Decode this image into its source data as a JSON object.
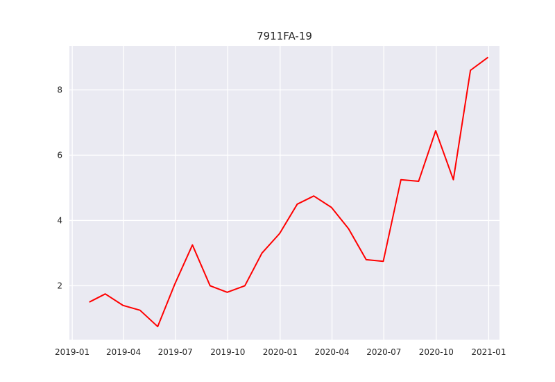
{
  "chart_data": {
    "type": "line",
    "title": "7911FA-19",
    "xlabel": "",
    "ylabel": "",
    "grid": true,
    "x_axis": {
      "type": "date",
      "range": [
        "2018-12-27",
        "2021-01-20"
      ],
      "ticks": [
        {
          "value": "2019-01-01",
          "label": "2019-01"
        },
        {
          "value": "2019-04-01",
          "label": "2019-04"
        },
        {
          "value": "2019-07-01",
          "label": "2019-07"
        },
        {
          "value": "2019-10-01",
          "label": "2019-10"
        },
        {
          "value": "2020-01-01",
          "label": "2020-01"
        },
        {
          "value": "2020-04-01",
          "label": "2020-04"
        },
        {
          "value": "2020-07-01",
          "label": "2020-07"
        },
        {
          "value": "2020-10-01",
          "label": "2020-10"
        },
        {
          "value": "2021-01-01",
          "label": "2021-01"
        }
      ]
    },
    "y_axis": {
      "range": [
        0.35,
        9.35
      ],
      "ticks": [
        {
          "value": 2,
          "label": "2"
        },
        {
          "value": 4,
          "label": "4"
        },
        {
          "value": 6,
          "label": "6"
        },
        {
          "value": 8,
          "label": "8"
        }
      ]
    },
    "series": [
      {
        "color": "#ff0000",
        "x": [
          "2019-01-31",
          "2019-02-28",
          "2019-03-31",
          "2019-04-30",
          "2019-05-31",
          "2019-06-30",
          "2019-07-31",
          "2019-08-31",
          "2019-09-30",
          "2019-10-31",
          "2019-11-30",
          "2019-12-31",
          "2020-01-31",
          "2020-02-29",
          "2020-03-31",
          "2020-04-30",
          "2020-05-31",
          "2020-06-30",
          "2020-07-31",
          "2020-08-31",
          "2020-09-30",
          "2020-10-31",
          "2020-11-30",
          "2020-12-31"
        ],
        "values": [
          1.5,
          1.75,
          1.4,
          1.25,
          0.75,
          2.05,
          3.25,
          2.0,
          1.8,
          2.0,
          3.0,
          3.6,
          4.5,
          4.75,
          4.4,
          3.75,
          2.8,
          2.75,
          5.25,
          5.2,
          6.75,
          5.25,
          8.6,
          9.0
        ]
      }
    ]
  }
}
